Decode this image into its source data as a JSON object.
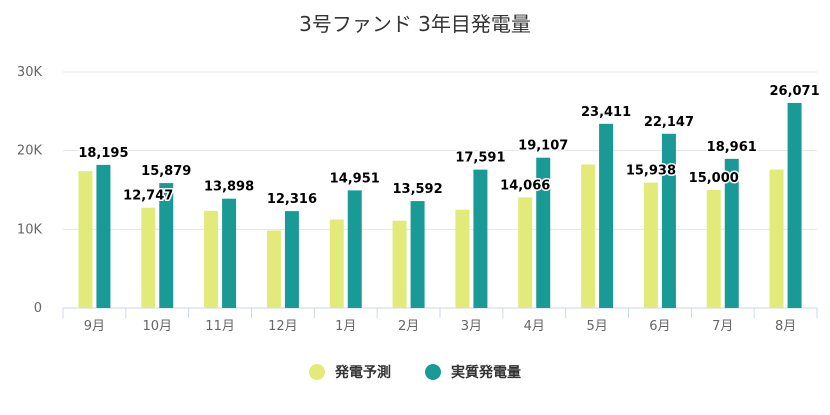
{
  "chart_data": {
    "type": "bar",
    "title": "3号ファンド 3年目発電量",
    "categories": [
      "9月",
      "10月",
      "11月",
      "12月",
      "1月",
      "2月",
      "3月",
      "4月",
      "5月",
      "6月",
      "7月",
      "8月"
    ],
    "series": [
      {
        "name": "発電予測",
        "color": "#e2eb7a",
        "values": [
          17400,
          12747,
          12350,
          9850,
          11250,
          11100,
          12500,
          14066,
          18250,
          15938,
          15000,
          17600
        ],
        "labels": [
          "",
          "12,747",
          "",
          "",
          "",
          "",
          "",
          "14,066",
          "",
          "15,938",
          "15,000",
          ""
        ]
      },
      {
        "name": "実質発電量",
        "color": "#1a9a97",
        "values": [
          18195,
          15879,
          13898,
          12316,
          14951,
          13592,
          17591,
          19107,
          23411,
          22147,
          18961,
          26071
        ],
        "labels": [
          "18,195",
          "15,879",
          "13,898",
          "12,316",
          "14,951",
          "13,592",
          "17,591",
          "19,107",
          "23,411",
          "22,147",
          "18,961",
          "26,071"
        ]
      }
    ],
    "ylim": [
      0,
      30000
    ],
    "yticks": [
      {
        "value": 0,
        "label": "0"
      },
      {
        "value": 10000,
        "label": "10K"
      },
      {
        "value": 20000,
        "label": "20K"
      },
      {
        "value": 30000,
        "label": "30K"
      }
    ],
    "grid": true,
    "legend_position": "bottom-center"
  }
}
